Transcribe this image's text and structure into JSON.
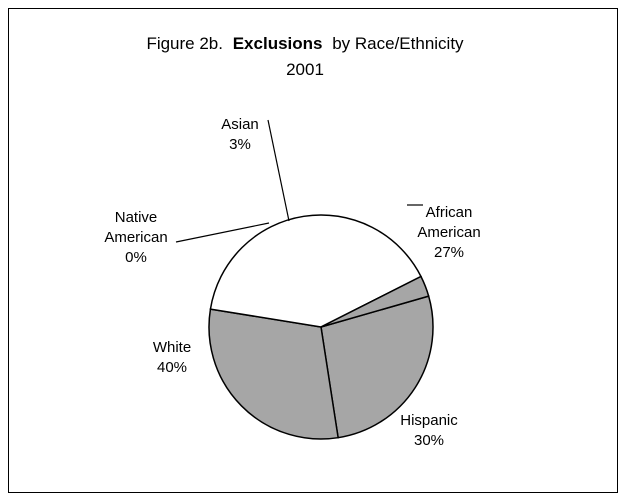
{
  "chart_data": {
    "type": "pie",
    "title_prefix": "Figure 2b.",
    "title_bold": "Exclusions",
    "title_suffix": "by Race/Ethnicity",
    "subtitle": "2001",
    "slices": [
      {
        "name": "African American",
        "label_lines": [
          "African",
          "American"
        ],
        "value": 27,
        "value_label": "27%",
        "color": "#a6a6a6"
      },
      {
        "name": "Hispanic",
        "label_lines": [
          "Hispanic"
        ],
        "value": 30,
        "value_label": "30%",
        "color": "#a6a6a6"
      },
      {
        "name": "White",
        "label_lines": [
          "White"
        ],
        "value": 40,
        "value_label": "40%",
        "color": "#ffffff"
      },
      {
        "name": "Native American",
        "label_lines": [
          "Native",
          "American"
        ],
        "value": 0,
        "value_label": "0%",
        "color": "#ffffff"
      },
      {
        "name": "Asian",
        "label_lines": [
          "Asian"
        ],
        "value": 3,
        "value_label": "3%",
        "color": "#a6a6a6"
      }
    ]
  }
}
